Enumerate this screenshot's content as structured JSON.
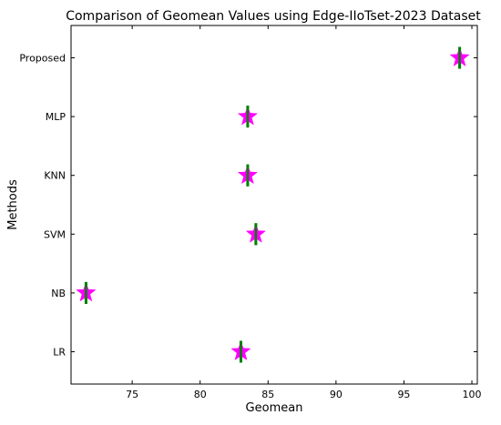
{
  "chart_data": {
    "type": "scatter",
    "title": "Comparison of Geomean Values using Edge-IIoTset-2023 Dataset",
    "xlabel": "Geomean",
    "ylabel": "Methods",
    "categories": [
      "LR",
      "NB",
      "SVM",
      "KNN",
      "MLP",
      "Proposed"
    ],
    "values": [
      83.0,
      71.6,
      84.1,
      83.5,
      83.5,
      99.1
    ],
    "error": [
      0.3,
      0.3,
      0.3,
      0.3,
      0.3,
      0.3
    ],
    "xlim": [
      70.5,
      100.4
    ],
    "xticks": [
      75,
      80,
      85,
      90,
      95,
      100
    ],
    "marker": "star",
    "marker_color": "#ff00ff",
    "error_color": "#008000",
    "grid": false
  }
}
